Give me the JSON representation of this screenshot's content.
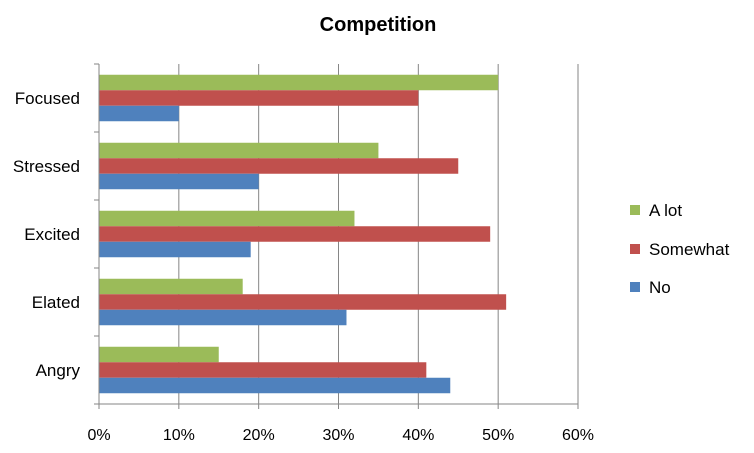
{
  "chart_data": {
    "type": "bar",
    "orientation": "horizontal",
    "title": "Competition",
    "xlabel": "",
    "ylabel": "",
    "xlim": [
      0,
      60
    ],
    "x_ticks": [
      "0%",
      "10%",
      "20%",
      "30%",
      "40%",
      "50%",
      "60%"
    ],
    "x_tick_values": [
      0,
      10,
      20,
      30,
      40,
      50,
      60
    ],
    "unit": "%",
    "grid": "vertical",
    "legend_position": "right",
    "categories": [
      "Focused",
      "Stressed",
      "Excited",
      "Elated",
      "Angry"
    ],
    "series": [
      {
        "name": "A lot",
        "color": "#9BBB59",
        "values": [
          50,
          35,
          32,
          18,
          15
        ]
      },
      {
        "name": "Somewhat",
        "color": "#C0504D",
        "values": [
          40,
          45,
          49,
          51,
          41
        ]
      },
      {
        "name": "No",
        "color": "#4F81BD",
        "values": [
          10,
          20,
          19,
          31,
          44
        ]
      }
    ]
  }
}
